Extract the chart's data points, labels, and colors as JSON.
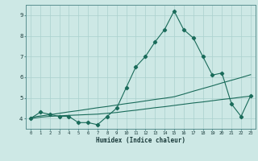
{
  "xlabel": "Humidex (Indice chaleur)",
  "x": [
    0,
    1,
    2,
    3,
    4,
    5,
    6,
    7,
    8,
    9,
    10,
    11,
    12,
    13,
    14,
    15,
    16,
    17,
    18,
    19,
    20,
    21,
    22,
    23
  ],
  "line_main": [
    4.0,
    4.3,
    4.2,
    4.1,
    4.1,
    3.8,
    3.8,
    3.7,
    4.1,
    4.5,
    5.5,
    6.5,
    7.0,
    7.7,
    8.3,
    9.2,
    8.3,
    7.9,
    7.0,
    6.1,
    6.2,
    4.7,
    4.1,
    5.1
  ],
  "line_upper": [
    4.05,
    4.12,
    4.18,
    4.25,
    4.32,
    4.38,
    4.45,
    4.52,
    4.58,
    4.65,
    4.72,
    4.78,
    4.85,
    4.92,
    4.98,
    5.05,
    5.18,
    5.32,
    5.45,
    5.58,
    5.72,
    5.85,
    5.98,
    6.12
  ],
  "line_lower": [
    4.0,
    4.06,
    4.1,
    4.13,
    4.15,
    4.17,
    4.19,
    4.21,
    4.25,
    4.29,
    4.35,
    4.4,
    4.46,
    4.52,
    4.57,
    4.63,
    4.69,
    4.75,
    4.8,
    4.86,
    4.92,
    4.97,
    5.03,
    5.08
  ],
  "color_main": "#1a6b5a",
  "bg_color": "#cde8e5",
  "grid_color": "#aad0cd",
  "ylim": [
    3.5,
    9.5
  ],
  "xlim": [
    -0.5,
    23.5
  ],
  "yticks": [
    4,
    5,
    6,
    7,
    8,
    9
  ]
}
